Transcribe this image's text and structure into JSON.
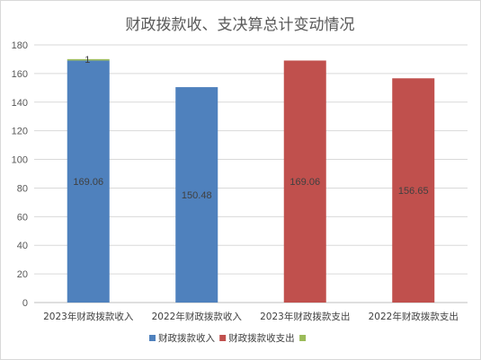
{
  "chart_data": {
    "type": "bar",
    "title": "财政拨款收、支决算总计变动情况",
    "categories": [
      "2023年财政拨款收入",
      "2022年财政拨款收入",
      "2023年财政拨款支出",
      "2022年财政拨款支出"
    ],
    "values": [
      169.06,
      150.48,
      169.06,
      156.65
    ],
    "bar_colors": [
      "#4f81bd",
      "#4f81bd",
      "#c0504d",
      "#c0504d"
    ],
    "stacked_top": {
      "category_index": 0,
      "value": 1,
      "color": "#9bbb59"
    },
    "ylim": [
      0,
      180
    ],
    "yticks": [
      "0",
      "20",
      "40",
      "60",
      "80",
      "100",
      "120",
      "140",
      "160",
      "180"
    ],
    "grid": true,
    "legend": {
      "position": "bottom",
      "items": [
        {
          "label": "财政拨款收入",
          "color": "#4f81bd"
        },
        {
          "label": "财政拨款收支出",
          "color": "#c0504d"
        },
        {
          "label": "",
          "color": "#9bbb59"
        }
      ]
    }
  }
}
